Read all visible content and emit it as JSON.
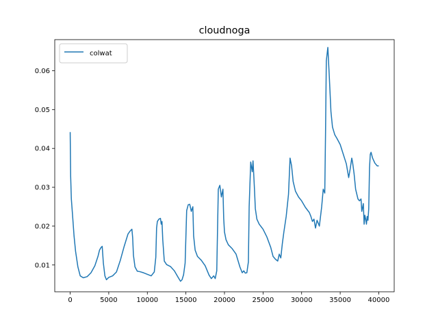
{
  "chart_data": {
    "type": "line",
    "title": "cloudnoga",
    "xlabel": "",
    "ylabel": "",
    "xlim": [
      -2000,
      42000
    ],
    "ylim": [
      0.0031,
      0.068
    ],
    "xticks": [
      0,
      5000,
      10000,
      15000,
      20000,
      25000,
      30000,
      35000,
      40000
    ],
    "xtick_labels": [
      "0",
      "5000",
      "10000",
      "15000",
      "20000",
      "25000",
      "30000",
      "35000",
      "40000"
    ],
    "yticks": [
      0.01,
      0.02,
      0.03,
      0.04,
      0.05,
      0.06
    ],
    "ytick_labels": [
      "0.01",
      "0.02",
      "0.03",
      "0.04",
      "0.05",
      "0.06"
    ],
    "grid": false,
    "legend": {
      "position": "upper left",
      "entries": [
        "colwat"
      ]
    },
    "series": [
      {
        "name": "colwat",
        "color": "#1f77b4",
        "x": [
          0,
          60,
          150,
          300,
          500,
          700,
          1000,
          1300,
          1700,
          2200,
          2700,
          3200,
          3600,
          3800,
          4000,
          4150,
          4300,
          4500,
          4700,
          5000,
          5500,
          6000,
          6500,
          7000,
          7500,
          7800,
          8000,
          8100,
          8200,
          8400,
          8700,
          9000,
          9500,
          10000,
          10500,
          10900,
          11100,
          11200,
          11300,
          11500,
          11700,
          11800,
          11900,
          12000,
          12200,
          12500,
          13000,
          13500,
          14000,
          14300,
          14500,
          14700,
          14900,
          15100,
          15300,
          15500,
          15700,
          15900,
          16000,
          16200,
          16500,
          17000,
          17500,
          18000,
          18300,
          18600,
          18800,
          19000,
          19200,
          19400,
          19600,
          19800,
          19900,
          20000,
          20200,
          20500,
          21000,
          21500,
          22000,
          22300,
          22500,
          22700,
          22900,
          23100,
          23200,
          23400,
          23600,
          23700,
          23800,
          23900,
          24000,
          24200,
          24500,
          25000,
          25500,
          26000,
          26300,
          26600,
          26900,
          27100,
          27300,
          27500,
          27700,
          28000,
          28300,
          28500,
          28700,
          28900,
          29200,
          29600,
          30000,
          30500,
          31000,
          31200,
          31400,
          31600,
          31800,
          32000,
          32300,
          32600,
          32800,
          33000,
          33100,
          33200,
          33400,
          33600,
          33800,
          34000,
          34300,
          34600,
          35000,
          35400,
          35800,
          36100,
          36300,
          36500,
          36600,
          36800,
          37000,
          37300,
          37500,
          37700,
          37800,
          38000,
          38100,
          38200,
          38300,
          38400,
          38500,
          38600,
          38700,
          38800,
          38900,
          39000,
          39200,
          39500,
          39800,
          40000
        ],
        "y": [
          0.0442,
          0.033,
          0.027,
          0.023,
          0.0175,
          0.0135,
          0.0095,
          0.0072,
          0.0067,
          0.007,
          0.008,
          0.0098,
          0.0122,
          0.0138,
          0.0145,
          0.0148,
          0.0105,
          0.0072,
          0.0062,
          0.0068,
          0.0072,
          0.0082,
          0.0112,
          0.0148,
          0.018,
          0.0188,
          0.0192,
          0.017,
          0.0125,
          0.0095,
          0.0084,
          0.0083,
          0.008,
          0.0076,
          0.0072,
          0.0082,
          0.012,
          0.0195,
          0.0212,
          0.0218,
          0.022,
          0.0205,
          0.0212,
          0.0165,
          0.011,
          0.0101,
          0.0096,
          0.0085,
          0.0068,
          0.0058,
          0.0062,
          0.0075,
          0.0105,
          0.024,
          0.0255,
          0.0256,
          0.0238,
          0.025,
          0.0175,
          0.0138,
          0.0122,
          0.0112,
          0.0098,
          0.0074,
          0.0065,
          0.0072,
          0.0065,
          0.0085,
          0.0295,
          0.0305,
          0.0275,
          0.0295,
          0.022,
          0.0185,
          0.0165,
          0.0152,
          0.0142,
          0.0128,
          0.0095,
          0.008,
          0.0085,
          0.0079,
          0.008,
          0.0108,
          0.025,
          0.0365,
          0.034,
          0.0368,
          0.033,
          0.029,
          0.0245,
          0.0218,
          0.0205,
          0.0192,
          0.0172,
          0.0145,
          0.0122,
          0.0115,
          0.011,
          0.0128,
          0.0118,
          0.0155,
          0.0185,
          0.0225,
          0.0282,
          0.0375,
          0.0355,
          0.0315,
          0.029,
          0.0275,
          0.0265,
          0.0248,
          0.0235,
          0.0225,
          0.0212,
          0.0218,
          0.0195,
          0.0215,
          0.02,
          0.025,
          0.0295,
          0.0285,
          0.044,
          0.0625,
          0.066,
          0.058,
          0.0495,
          0.0455,
          0.0435,
          0.0425,
          0.041,
          0.0385,
          0.036,
          0.0325,
          0.0348,
          0.0375,
          0.0365,
          0.0335,
          0.0295,
          0.027,
          0.0265,
          0.027,
          0.0238,
          0.0258,
          0.0205,
          0.0228,
          0.0218,
          0.0205,
          0.0225,
          0.0215,
          0.0245,
          0.035,
          0.0385,
          0.039,
          0.0375,
          0.0362,
          0.0355,
          0.0355
        ]
      }
    ]
  }
}
